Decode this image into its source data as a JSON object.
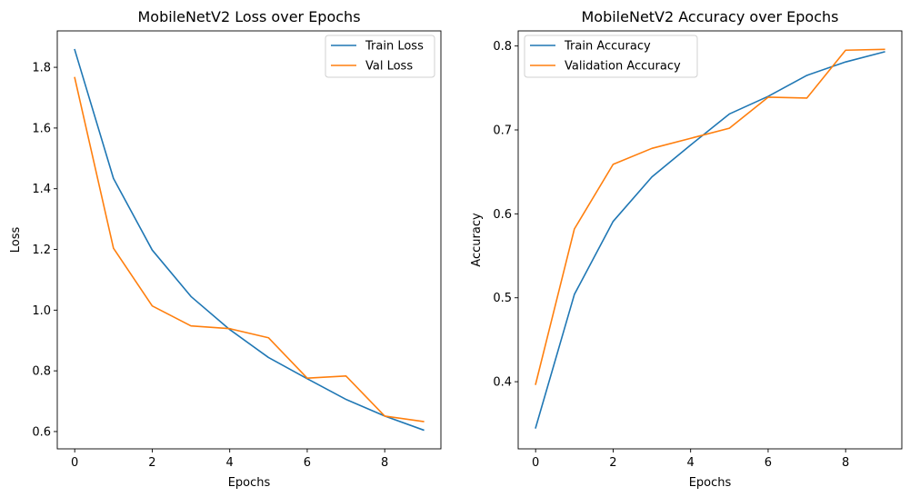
{
  "chart_data": [
    {
      "type": "line",
      "title": "MobileNetV2 Loss over Epochs",
      "xlabel": "Epochs",
      "ylabel": "Loss",
      "xlim": [
        -0.45,
        9.45
      ],
      "ylim": [
        0.543,
        1.92
      ],
      "xticks": [
        0,
        2,
        4,
        6,
        8
      ],
      "yticks": [
        0.6,
        0.8,
        1.0,
        1.2,
        1.4,
        1.6,
        1.8
      ],
      "x": [
        0,
        1,
        2,
        3,
        4,
        5,
        6,
        7,
        8,
        9
      ],
      "series": [
        {
          "name": "Train Loss",
          "color": "#1f77b4",
          "values": [
            1.858,
            1.434,
            1.198,
            1.045,
            0.936,
            0.844,
            0.774,
            0.706,
            0.651,
            0.605
          ]
        },
        {
          "name": "Val Loss",
          "color": "#ff7f0e",
          "values": [
            1.766,
            1.204,
            1.014,
            0.948,
            0.939,
            0.909,
            0.776,
            0.783,
            0.651,
            0.633
          ]
        }
      ],
      "legend": "upper right",
      "grid": false
    },
    {
      "type": "line",
      "title": "MobileNetV2 Accuracy over Epochs",
      "xlabel": "Epochs",
      "ylabel": "Accuracy",
      "xlim": [
        -0.45,
        9.45
      ],
      "ylim": [
        0.32,
        0.818
      ],
      "xticks": [
        0,
        2,
        4,
        6,
        8
      ],
      "yticks": [
        0.4,
        0.5,
        0.6,
        0.7,
        0.8
      ],
      "x": [
        0,
        1,
        2,
        3,
        4,
        5,
        6,
        7,
        8,
        9
      ],
      "series": [
        {
          "name": "Train Accuracy",
          "color": "#1f77b4",
          "values": [
            0.345,
            0.504,
            0.591,
            0.644,
            0.682,
            0.719,
            0.74,
            0.765,
            0.781,
            0.793
          ]
        },
        {
          "name": "Validation Accuracy",
          "color": "#ff7f0e",
          "values": [
            0.397,
            0.582,
            0.659,
            0.678,
            0.69,
            0.702,
            0.739,
            0.738,
            0.795,
            0.796
          ]
        }
      ],
      "legend": "upper left",
      "grid": false
    }
  ]
}
